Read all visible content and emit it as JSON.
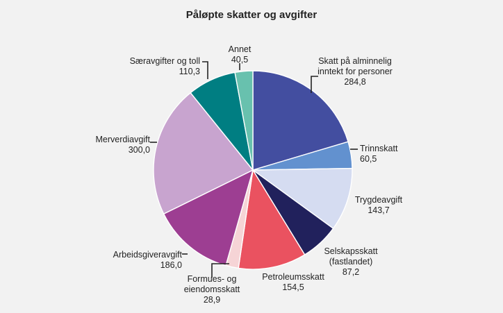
{
  "chart_data": {
    "type": "pie",
    "title": "Påløpte skatter og avgifter",
    "slices": [
      {
        "label": [
          "Skatt på alminnelig",
          "inntekt for personer"
        ],
        "value_label": "284,8",
        "value": 284.8,
        "color": "#434ea0"
      },
      {
        "label": [
          "Trinnskatt"
        ],
        "value_label": "60,5",
        "value": 60.5,
        "color": "#6291cf"
      },
      {
        "label": [
          "Trygdeavgift"
        ],
        "value_label": "143,7",
        "value": 143.7,
        "color": "#d5dcf1"
      },
      {
        "label": [
          "Selskapsskatt",
          "(fastlandet)"
        ],
        "value_label": "87,2",
        "value": 87.2,
        "color": "#21215c"
      },
      {
        "label": [
          "Petroleumsskatt"
        ],
        "value_label": "154,5",
        "value": 154.5,
        "color": "#ea5260"
      },
      {
        "label": [
          "Formues- og",
          "eiendomsskatt"
        ],
        "value_label": "28,9",
        "value": 28.9,
        "color": "#f6d4d6"
      },
      {
        "label": [
          "Arbeidsgiveravgift"
        ],
        "value_label": "186,0",
        "value": 186.0,
        "color": "#9d3e92"
      },
      {
        "label": [
          "Merverdiavgift"
        ],
        "value_label": "300,0",
        "value": 300.0,
        "color": "#c8a4cf"
      },
      {
        "label": [
          "Særavgifter og toll"
        ],
        "value_label": "110,3",
        "value": 110.3,
        "color": "#007e82"
      },
      {
        "label": [
          "Annet"
        ],
        "value_label": "40,5",
        "value": 40.5,
        "color": "#68c1ae"
      }
    ]
  }
}
